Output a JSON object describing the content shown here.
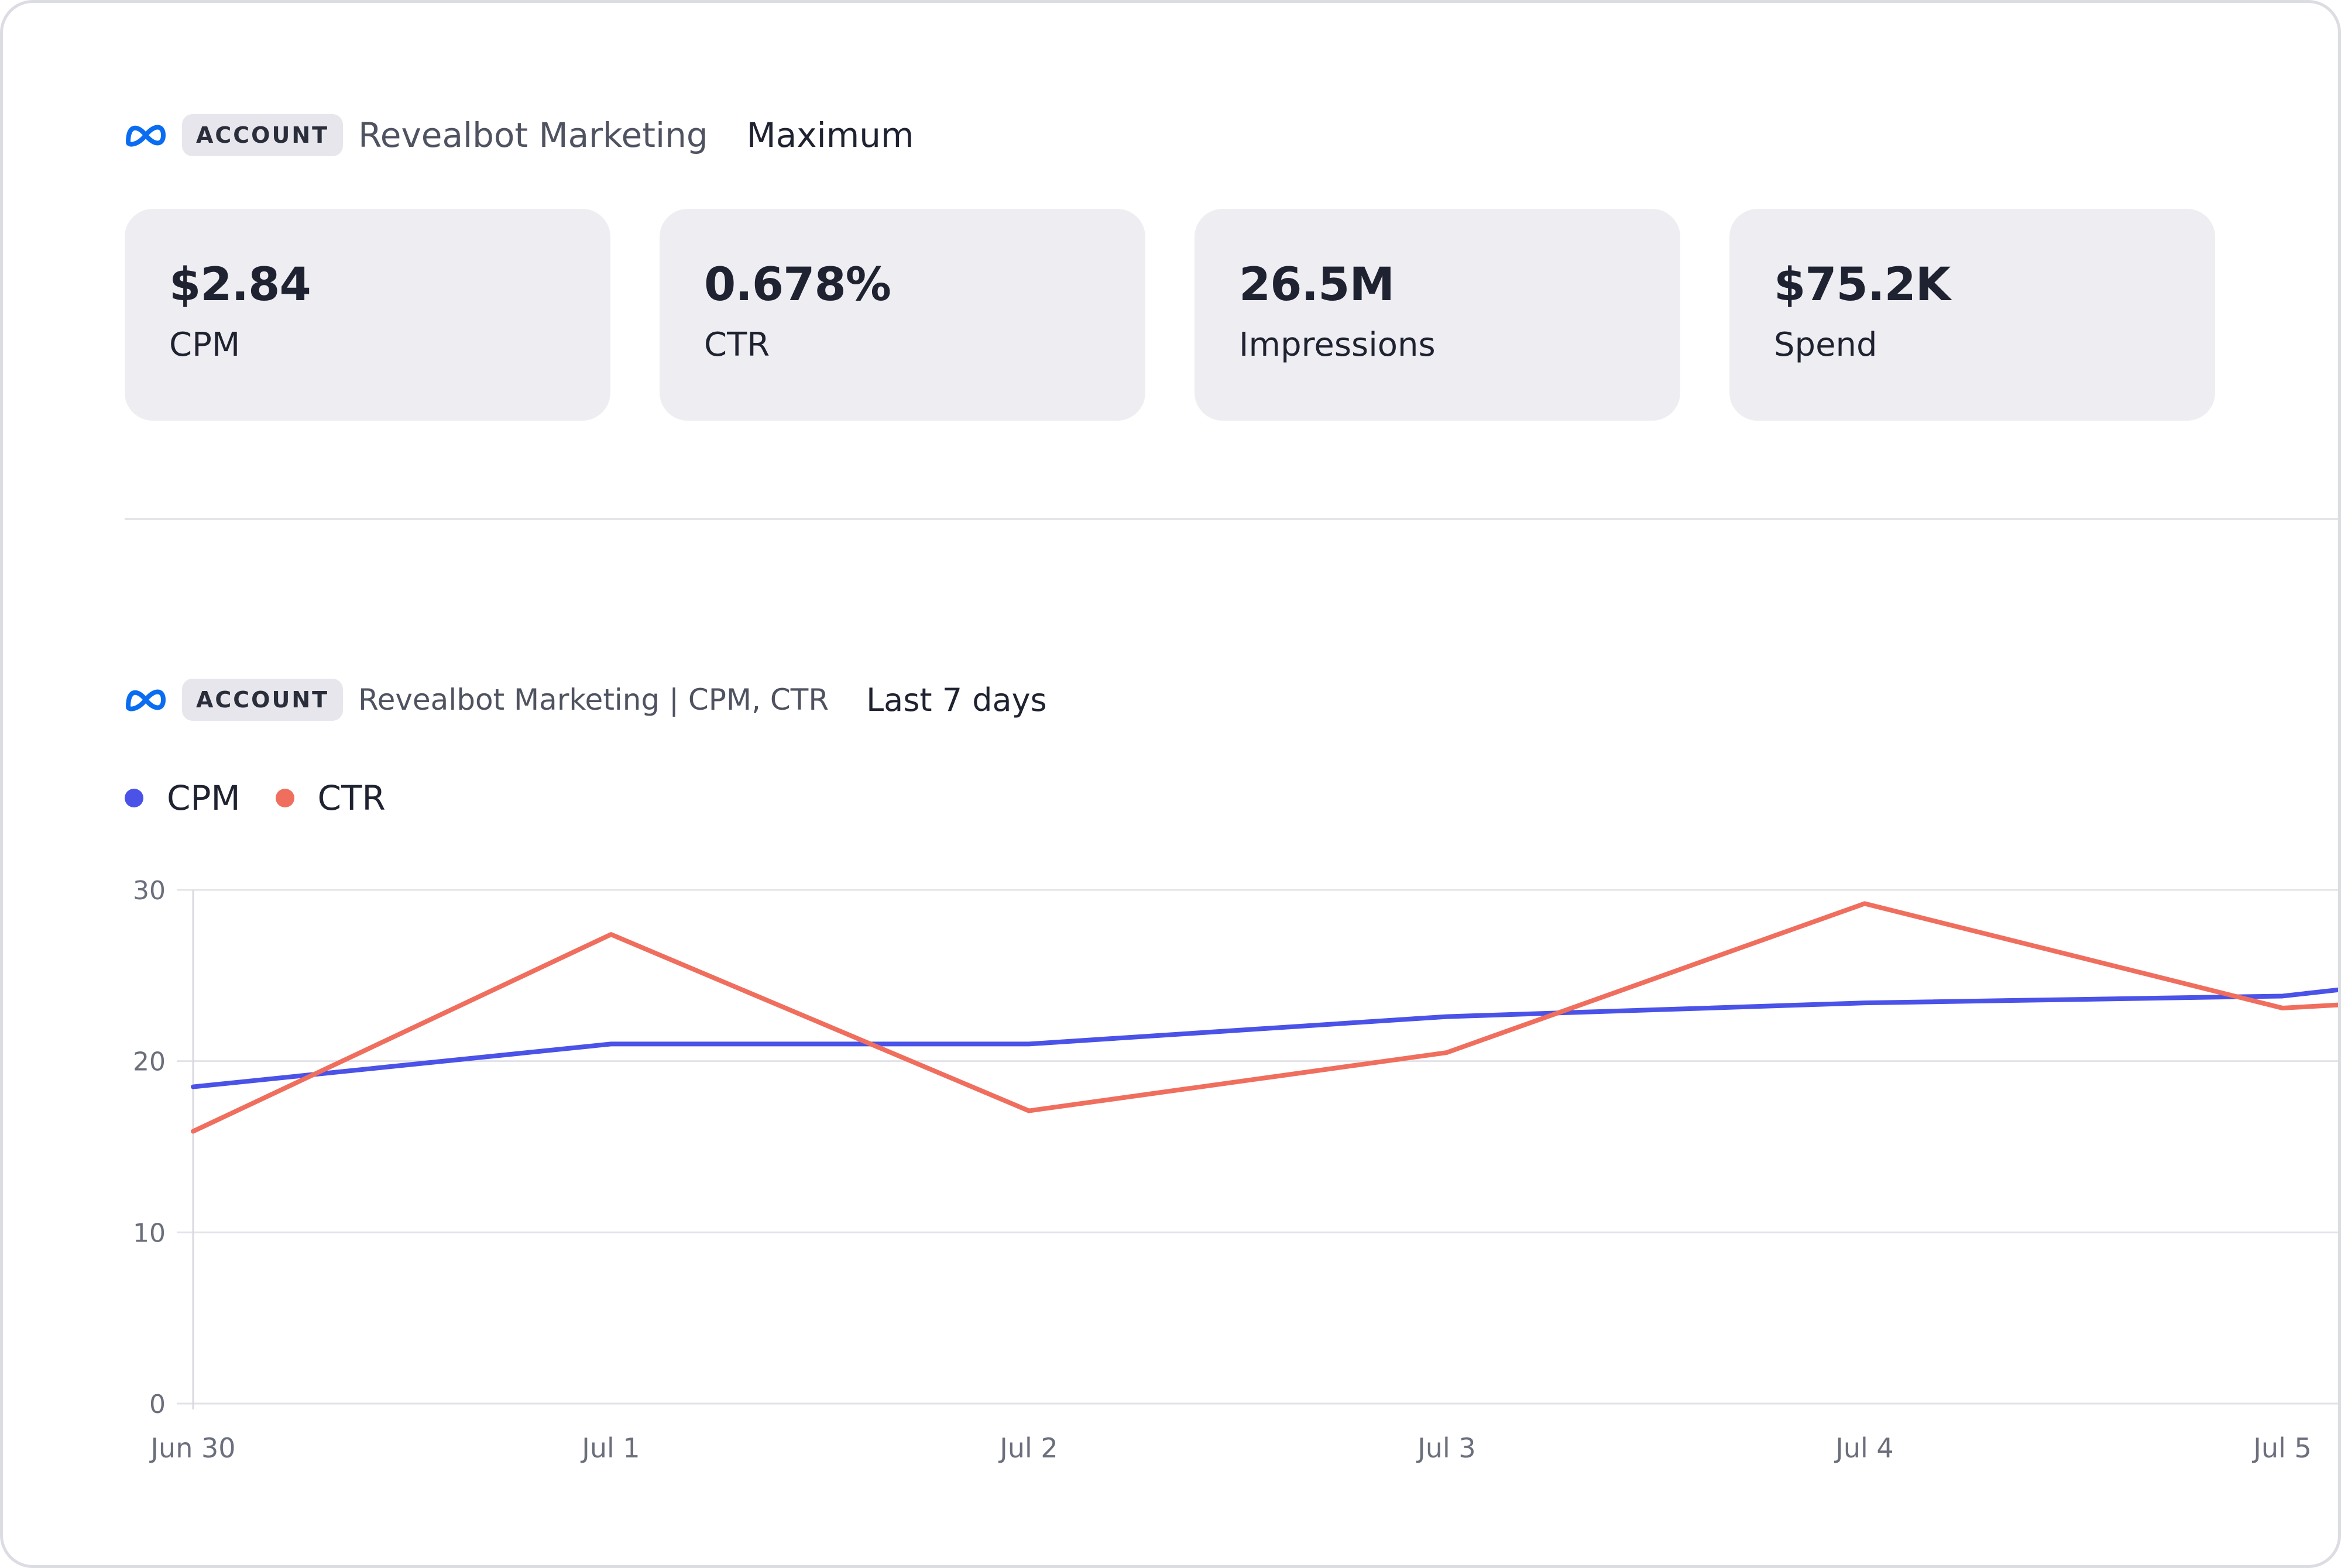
{
  "summary": {
    "badge": "ACCOUNT",
    "account_name": "Revealbot Marketing",
    "date_range": "Maximum",
    "cards": [
      {
        "value": "$2.84",
        "label": "CPM"
      },
      {
        "value": "0.678%",
        "label": "CTR"
      },
      {
        "value": "26.5M",
        "label": "Impressions"
      },
      {
        "value": "$75.2K",
        "label": "Spend"
      }
    ]
  },
  "chart_header": {
    "badge": "ACCOUNT",
    "title": "Revealbot Marketing | CPM, CTR",
    "date_range": "Last 7 days"
  },
  "colors": {
    "cpm": "#4a52e8",
    "ctr": "#f06e5e",
    "meta_blue": "#0a6cf0"
  },
  "icons": {
    "brand": "meta-logo-icon"
  },
  "chart_data": {
    "type": "line",
    "categories": [
      "Jun 30",
      "Jul 1",
      "Jul 2",
      "Jul 3",
      "Jul 4",
      "Jul 5"
    ],
    "series": [
      {
        "name": "CPM",
        "values": [
          18.5,
          21.0,
          21.0,
          22.6,
          23.4,
          23.8
        ]
      },
      {
        "name": "CTR",
        "values": [
          15.9,
          27.4,
          17.1,
          20.5,
          29.2,
          23.1
        ]
      }
    ],
    "y_ticks": [
      0,
      10,
      20,
      30
    ],
    "ylim": [
      0,
      30
    ],
    "grid": true,
    "legend": "top-left"
  }
}
